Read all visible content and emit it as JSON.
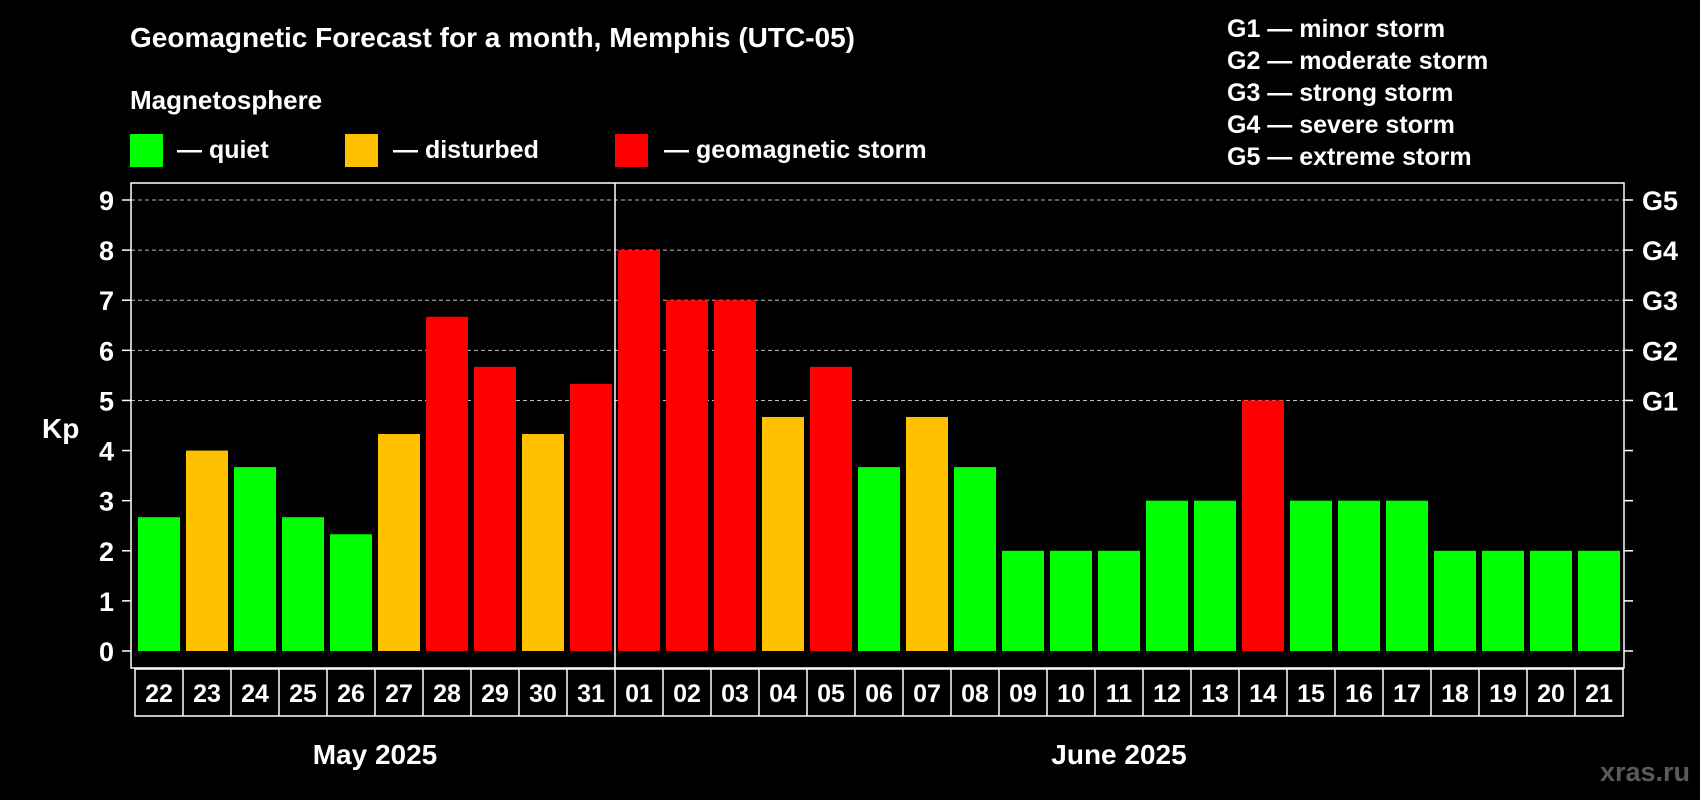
{
  "title": "Geomagnetic Forecast for a month, Memphis (UTC-05)",
  "legend": {
    "heading": "Magnetosphere",
    "items": [
      {
        "label": "— quiet",
        "color": "#00ff00"
      },
      {
        "label": "— disturbed",
        "color": "#ffc000"
      },
      {
        "label": "— geomagnetic storm",
        "color": "#ff0000"
      }
    ]
  },
  "g_scale": [
    "G1 — minor storm",
    "G2 — moderate storm",
    "G3 — strong storm",
    "G4 — severe storm",
    "G5 — extreme storm"
  ],
  "watermark": "xras.ru",
  "colors": {
    "background": "#000000",
    "quiet": "#00ff00",
    "disturbed": "#ffc000",
    "storm": "#ff0000",
    "axis": "#ffffff",
    "grid": "#bbbbbb"
  },
  "chart_data": {
    "type": "bar",
    "ylabel": "Kp",
    "ylim": [
      0,
      9
    ],
    "yticks": [
      "0",
      "1",
      "2",
      "3",
      "4",
      "5",
      "6",
      "7",
      "8",
      "9"
    ],
    "right_axis": [
      {
        "value": 5,
        "label": "G1"
      },
      {
        "value": 6,
        "label": "G2"
      },
      {
        "value": 7,
        "label": "G3"
      },
      {
        "value": 8,
        "label": "G4"
      },
      {
        "value": 9,
        "label": "G5"
      }
    ],
    "grid": true,
    "categories": [
      "22",
      "23",
      "24",
      "25",
      "26",
      "27",
      "28",
      "29",
      "30",
      "31",
      "01",
      "02",
      "03",
      "04",
      "05",
      "06",
      "07",
      "08",
      "09",
      "10",
      "11",
      "12",
      "13",
      "14",
      "15",
      "16",
      "17",
      "18",
      "19",
      "20",
      "21"
    ],
    "values": [
      2.67,
      4.0,
      3.67,
      2.67,
      2.33,
      4.33,
      6.67,
      5.67,
      4.33,
      5.33,
      8.0,
      7.0,
      7.0,
      4.67,
      5.67,
      3.67,
      4.67,
      3.67,
      2.0,
      2.0,
      2.0,
      3.0,
      3.0,
      5.0,
      3.0,
      3.0,
      3.0,
      2.0,
      2.0,
      2.0,
      2.0
    ],
    "levels": [
      "quiet",
      "disturbed",
      "quiet",
      "quiet",
      "quiet",
      "disturbed",
      "storm",
      "storm",
      "disturbed",
      "storm",
      "storm",
      "storm",
      "storm",
      "disturbed",
      "storm",
      "quiet",
      "disturbed",
      "quiet",
      "quiet",
      "quiet",
      "quiet",
      "quiet",
      "quiet",
      "storm",
      "quiet",
      "quiet",
      "quiet",
      "quiet",
      "quiet",
      "quiet",
      "quiet"
    ],
    "months": [
      {
        "label": "May 2025",
        "first_index": 0,
        "last_index": 9
      },
      {
        "label": "June 2025",
        "first_index": 10,
        "last_index": 30
      }
    ]
  }
}
